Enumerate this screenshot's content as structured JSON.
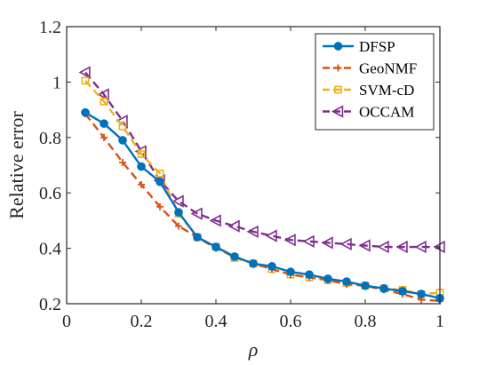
{
  "chart_data": {
    "type": "line",
    "xlabel": "ρ",
    "ylabel": "Relative error",
    "xlim": [
      0,
      1
    ],
    "ylim": [
      0.2,
      1.2
    ],
    "xticks": [
      0,
      0.2,
      0.4,
      0.6,
      0.8,
      1
    ],
    "xtick_labels": [
      "0",
      "0.2",
      "0.4",
      "0.6",
      "0.8",
      "1"
    ],
    "yticks": [
      0.2,
      0.4,
      0.6,
      0.8,
      1,
      1.2
    ],
    "ytick_labels": [
      "0.2",
      "0.4",
      "0.6",
      "0.8",
      "1",
      "1.2"
    ],
    "grid": false,
    "legend_position": "top-right",
    "x": [
      0.05,
      0.1,
      0.15,
      0.2,
      0.25,
      0.3,
      0.35,
      0.4,
      0.45,
      0.5,
      0.55,
      0.6,
      0.65,
      0.7,
      0.75,
      0.8,
      0.85,
      0.9,
      0.95,
      1.0
    ],
    "series": [
      {
        "name": "DFSP",
        "color": "#0072BD",
        "marker": "circle",
        "dash": "solid",
        "values": [
          0.89,
          0.85,
          0.79,
          0.695,
          0.64,
          0.53,
          0.44,
          0.405,
          0.37,
          0.345,
          0.335,
          0.315,
          0.305,
          0.29,
          0.28,
          0.265,
          0.255,
          0.245,
          0.235,
          0.22
        ]
      },
      {
        "name": "GeoNMF",
        "color": "#D95319",
        "marker": "plus",
        "dash": "dashed",
        "values": [
          0.885,
          0.8,
          0.71,
          0.63,
          0.55,
          0.48,
          0.44,
          0.4,
          0.37,
          0.345,
          0.325,
          0.305,
          0.295,
          0.285,
          0.27,
          0.265,
          0.25,
          0.235,
          0.215,
          0.21
        ]
      },
      {
        "name": "SVM-cD",
        "color": "#EDB120",
        "marker": "square",
        "dash": "dashed",
        "values": [
          1.005,
          0.93,
          0.84,
          0.74,
          0.67,
          0.525,
          0.44,
          0.405,
          0.365,
          0.345,
          0.325,
          0.305,
          0.295,
          0.285,
          0.275,
          0.265,
          0.255,
          0.25,
          0.235,
          0.24
        ]
      },
      {
        "name": "OCCAM",
        "color": "#7E2F8E",
        "marker": "triangle-left",
        "dash": "dashed",
        "values": [
          1.035,
          0.955,
          0.86,
          0.75,
          0.645,
          0.57,
          0.525,
          0.5,
          0.48,
          0.46,
          0.445,
          0.43,
          0.425,
          0.42,
          0.415,
          0.41,
          0.405,
          0.405,
          0.405,
          0.405
        ]
      }
    ]
  }
}
